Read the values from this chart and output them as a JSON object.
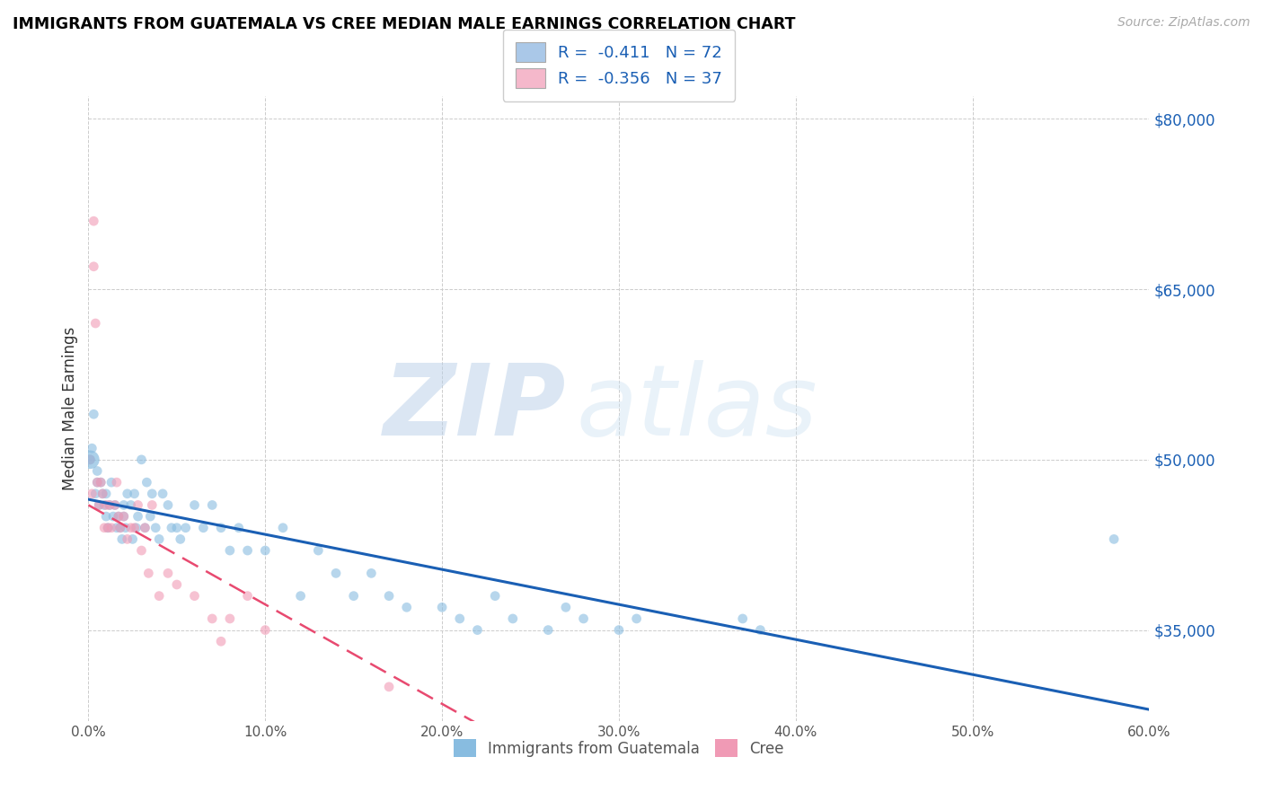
{
  "title": "IMMIGRANTS FROM GUATEMALA VS CREE MEDIAN MALE EARNINGS CORRELATION CHART",
  "source": "Source: ZipAtlas.com",
  "ylabel": "Median Male Earnings",
  "xlim": [
    0.0,
    0.6
  ],
  "ylim": [
    27000,
    82000
  ],
  "xtick_labels": [
    "0.0%",
    "10.0%",
    "20.0%",
    "30.0%",
    "40.0%",
    "50.0%",
    "60.0%"
  ],
  "xtick_vals": [
    0.0,
    0.1,
    0.2,
    0.3,
    0.4,
    0.5,
    0.6
  ],
  "ytick_vals": [
    35000,
    50000,
    65000,
    80000
  ],
  "right_ytick_labels": [
    "$35,000",
    "$50,000",
    "$65,000",
    "$80,000"
  ],
  "watermark_zip": "ZIP",
  "watermark_atlas": "atlas",
  "legend_label1": "R =  -0.411   N = 72",
  "legend_label2": "R =  -0.356   N = 37",
  "legend_color1": "#aac8e8",
  "legend_color2": "#f5b8cb",
  "color_blue": "#88bce0",
  "color_pink": "#f09ab5",
  "line_color_blue": "#1a5fb4",
  "line_color_pink": "#e84a70",
  "scatter_alpha": 0.6,
  "scatter_size": 60,
  "blue_x": [
    0.001,
    0.002,
    0.003,
    0.004,
    0.005,
    0.005,
    0.006,
    0.007,
    0.008,
    0.009,
    0.01,
    0.01,
    0.011,
    0.012,
    0.013,
    0.014,
    0.015,
    0.016,
    0.017,
    0.018,
    0.019,
    0.02,
    0.02,
    0.021,
    0.022,
    0.024,
    0.025,
    0.026,
    0.027,
    0.028,
    0.03,
    0.032,
    0.033,
    0.035,
    0.036,
    0.038,
    0.04,
    0.042,
    0.045,
    0.047,
    0.05,
    0.052,
    0.055,
    0.06,
    0.065,
    0.07,
    0.075,
    0.08,
    0.085,
    0.09,
    0.1,
    0.11,
    0.12,
    0.13,
    0.14,
    0.15,
    0.16,
    0.17,
    0.18,
    0.2,
    0.21,
    0.22,
    0.23,
    0.24,
    0.26,
    0.27,
    0.28,
    0.3,
    0.31,
    0.37,
    0.38,
    0.58
  ],
  "blue_y": [
    50000,
    51000,
    54000,
    47000,
    48000,
    49000,
    46000,
    48000,
    47000,
    46000,
    45000,
    47000,
    44000,
    46000,
    48000,
    45000,
    46000,
    44000,
    45000,
    44000,
    43000,
    45000,
    46000,
    44000,
    47000,
    46000,
    43000,
    47000,
    44000,
    45000,
    50000,
    44000,
    48000,
    45000,
    47000,
    44000,
    43000,
    47000,
    46000,
    44000,
    44000,
    43000,
    44000,
    46000,
    44000,
    46000,
    44000,
    42000,
    44000,
    42000,
    42000,
    44000,
    38000,
    42000,
    40000,
    38000,
    40000,
    38000,
    37000,
    37000,
    36000,
    35000,
    38000,
    36000,
    35000,
    37000,
    36000,
    35000,
    36000,
    36000,
    35000,
    43000
  ],
  "pink_x": [
    0.001,
    0.002,
    0.003,
    0.003,
    0.004,
    0.005,
    0.006,
    0.007,
    0.008,
    0.009,
    0.01,
    0.011,
    0.012,
    0.013,
    0.015,
    0.016,
    0.017,
    0.018,
    0.02,
    0.022,
    0.024,
    0.026,
    0.028,
    0.03,
    0.032,
    0.034,
    0.036,
    0.04,
    0.045,
    0.05,
    0.06,
    0.07,
    0.075,
    0.08,
    0.09,
    0.1,
    0.17
  ],
  "pink_y": [
    50000,
    47000,
    71000,
    67000,
    62000,
    48000,
    46000,
    48000,
    47000,
    44000,
    46000,
    44000,
    46000,
    44000,
    46000,
    48000,
    45000,
    44000,
    45000,
    43000,
    44000,
    44000,
    46000,
    42000,
    44000,
    40000,
    46000,
    38000,
    40000,
    39000,
    38000,
    36000,
    34000,
    36000,
    38000,
    35000,
    30000
  ],
  "blue_line_x0": 0.0,
  "blue_line_x1": 0.6,
  "blue_line_y0": 46500,
  "blue_line_y1": 28000,
  "pink_line_x0": 0.0,
  "pink_line_x1": 0.2,
  "pink_line_y0": 46000,
  "pink_line_y1": 28500
}
